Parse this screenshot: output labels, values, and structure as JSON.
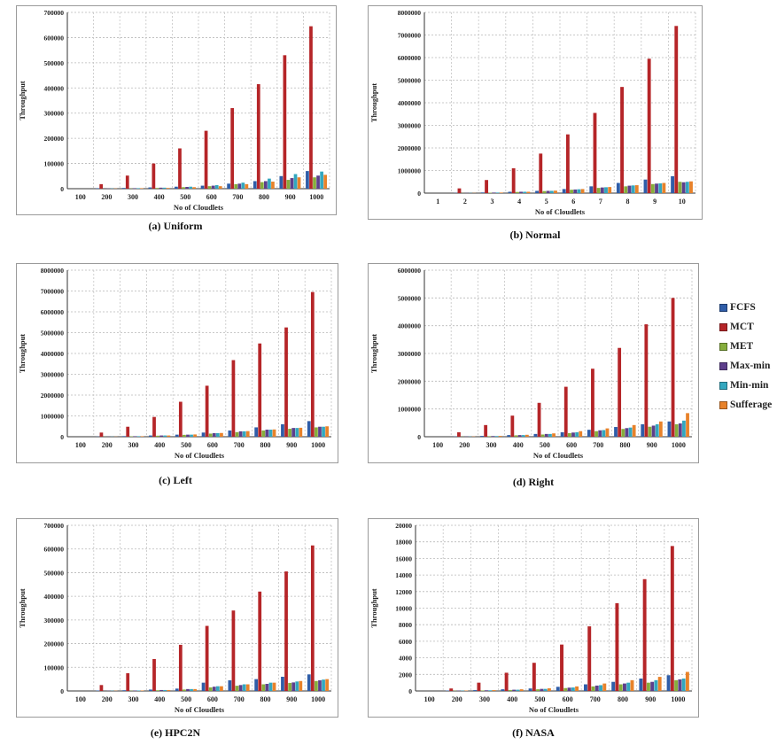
{
  "legend": {
    "items": [
      {
        "label": "FCFS",
        "color": "#2f5da8"
      },
      {
        "label": "MCT",
        "color": "#b52528"
      },
      {
        "label": "MET",
        "color": "#86ad3c"
      },
      {
        "label": "Max-min",
        "color": "#5d3f8c"
      },
      {
        "label": "Min-min",
        "color": "#33a7bf"
      },
      {
        "label": "Sufferage",
        "color": "#e8822a"
      }
    ]
  },
  "chart_data": [
    {
      "type": "bar",
      "caption": "(a) Uniform",
      "ylabel": "Throughput",
      "xlabel": "No of Cloudlets",
      "ylim": [
        0,
        700000
      ],
      "yticks": [
        0,
        100000,
        200000,
        300000,
        400000,
        500000,
        600000,
        700000
      ],
      "categories": [
        "100",
        "200",
        "300",
        "400",
        "500",
        "600",
        "700",
        "800",
        "900",
        "1000"
      ],
      "series": [
        {
          "name": "FCFS",
          "values": [
            0,
            2000,
            3000,
            5000,
            8000,
            12000,
            20000,
            30000,
            50000,
            70000
          ]
        },
        {
          "name": "MCT",
          "values": [
            0,
            18000,
            52000,
            100000,
            160000,
            230000,
            320000,
            415000,
            530000,
            645000
          ]
        },
        {
          "name": "MET",
          "values": [
            0,
            0,
            1000,
            3000,
            6000,
            10000,
            18000,
            26000,
            35000,
            45000
          ]
        },
        {
          "name": "Max-min",
          "values": [
            0,
            1000,
            2000,
            4000,
            7000,
            12000,
            20000,
            30000,
            42000,
            52000
          ]
        },
        {
          "name": "Min-min",
          "values": [
            0,
            1000,
            2000,
            4000,
            8000,
            14000,
            24000,
            40000,
            58000,
            68000
          ]
        },
        {
          "name": "Sufferage",
          "values": [
            0,
            1000,
            2000,
            3000,
            6000,
            10000,
            18000,
            28000,
            45000,
            55000
          ]
        }
      ]
    },
    {
      "type": "bar",
      "caption": "(b) Normal",
      "ylabel": "Throughput",
      "xlabel": "No of Cloudlets",
      "ylim": [
        0,
        8000000
      ],
      "yticks": [
        0,
        1000000,
        2000000,
        3000000,
        4000000,
        5000000,
        6000000,
        7000000,
        8000000
      ],
      "categories": [
        "1",
        "2",
        "3",
        "4",
        "5",
        "6",
        "7",
        "8",
        "9",
        "10"
      ],
      "series": [
        {
          "name": "FCFS",
          "values": [
            0,
            10000,
            30000,
            60000,
            100000,
            180000,
            300000,
            450000,
            600000,
            750000
          ]
        },
        {
          "name": "MCT",
          "values": [
            0,
            210000,
            580000,
            1100000,
            1750000,
            2600000,
            3550000,
            4700000,
            5950000,
            7400000
          ]
        },
        {
          "name": "MET",
          "values": [
            0,
            5000,
            20000,
            50000,
            90000,
            150000,
            230000,
            300000,
            400000,
            500000
          ]
        },
        {
          "name": "Max-min",
          "values": [
            0,
            8000,
            25000,
            60000,
            100000,
            160000,
            250000,
            330000,
            420000,
            480000
          ]
        },
        {
          "name": "Min-min",
          "values": [
            0,
            8000,
            25000,
            60000,
            100000,
            170000,
            260000,
            340000,
            430000,
            500000
          ]
        },
        {
          "name": "Sufferage",
          "values": [
            0,
            8000,
            25000,
            60000,
            110000,
            180000,
            270000,
            350000,
            450000,
            520000
          ]
        }
      ]
    },
    {
      "type": "bar",
      "caption": "(c) Left",
      "ylabel": "Throughput",
      "xlabel": "No of Cloudlets",
      "ylim": [
        0,
        8000000
      ],
      "yticks": [
        0,
        1000000,
        2000000,
        3000000,
        4000000,
        5000000,
        6000000,
        7000000,
        8000000
      ],
      "categories": [
        "100",
        "200",
        "300",
        "400",
        "500",
        "600",
        "700",
        "800",
        "900",
        "1000"
      ],
      "series": [
        {
          "name": "FCFS",
          "values": [
            0,
            10000,
            30000,
            60000,
            100000,
            200000,
            300000,
            450000,
            600000,
            750000
          ]
        },
        {
          "name": "MCT",
          "values": [
            0,
            200000,
            480000,
            950000,
            1680000,
            2450000,
            3680000,
            4480000,
            5250000,
            6950000
          ]
        },
        {
          "name": "MET",
          "values": [
            0,
            5000,
            20000,
            50000,
            90000,
            150000,
            220000,
            300000,
            380000,
            450000
          ]
        },
        {
          "name": "Max-min",
          "values": [
            0,
            8000,
            25000,
            60000,
            100000,
            170000,
            260000,
            340000,
            420000,
            480000
          ]
        },
        {
          "name": "Min-min",
          "values": [
            0,
            8000,
            25000,
            60000,
            100000,
            170000,
            260000,
            340000,
            420000,
            480000
          ]
        },
        {
          "name": "Sufferage",
          "values": [
            0,
            8000,
            25000,
            60000,
            110000,
            180000,
            270000,
            350000,
            430000,
            500000
          ]
        }
      ]
    },
    {
      "type": "bar",
      "caption": "(d) Right",
      "ylabel": "Throughput",
      "xlabel": "No of Cloudlets",
      "ylim": [
        0,
        6000000
      ],
      "yticks": [
        0,
        1000000,
        2000000,
        3000000,
        4000000,
        5000000,
        6000000
      ],
      "categories": [
        "100",
        "200",
        "300",
        "400",
        "500",
        "600",
        "700",
        "800",
        "900",
        "1000"
      ],
      "series": [
        {
          "name": "FCFS",
          "values": [
            0,
            10000,
            30000,
            60000,
            100000,
            160000,
            250000,
            350000,
            450000,
            550000
          ]
        },
        {
          "name": "MCT",
          "values": [
            0,
            160000,
            420000,
            760000,
            1220000,
            1800000,
            2450000,
            3200000,
            4050000,
            5000000
          ]
        },
        {
          "name": "MET",
          "values": [
            0,
            5000,
            20000,
            50000,
            80000,
            130000,
            200000,
            280000,
            360000,
            450000
          ]
        },
        {
          "name": "Max-min",
          "values": [
            0,
            8000,
            25000,
            60000,
            100000,
            150000,
            230000,
            310000,
            400000,
            480000
          ]
        },
        {
          "name": "Min-min",
          "values": [
            0,
            8000,
            25000,
            60000,
            100000,
            160000,
            240000,
            330000,
            450000,
            580000
          ]
        },
        {
          "name": "Sufferage",
          "values": [
            0,
            10000,
            30000,
            70000,
            120000,
            200000,
            300000,
            420000,
            550000,
            850000
          ]
        }
      ]
    },
    {
      "type": "bar",
      "caption": "(e) HPC2N",
      "ylabel": "Throughput",
      "xlabel": "No of Cloudlets",
      "ylim": [
        0,
        700000
      ],
      "yticks": [
        0,
        100000,
        200000,
        300000,
        400000,
        500000,
        600000,
        700000
      ],
      "categories": [
        "100",
        "200",
        "300",
        "400",
        "500",
        "600",
        "700",
        "800",
        "900",
        "1000"
      ],
      "series": [
        {
          "name": "FCFS",
          "values": [
            0,
            2000,
            3000,
            6000,
            10000,
            35000,
            45000,
            50000,
            60000,
            70000
          ]
        },
        {
          "name": "MCT",
          "values": [
            0,
            25000,
            75000,
            135000,
            195000,
            275000,
            340000,
            420000,
            505000,
            615000
          ]
        },
        {
          "name": "MET",
          "values": [
            0,
            0,
            1000,
            3000,
            6000,
            15000,
            22000,
            28000,
            34000,
            42000
          ]
        },
        {
          "name": "Max-min",
          "values": [
            0,
            1000,
            2000,
            4000,
            8000,
            18000,
            25000,
            30000,
            36000,
            45000
          ]
        },
        {
          "name": "Min-min",
          "values": [
            0,
            1000,
            2000,
            4000,
            8000,
            20000,
            28000,
            35000,
            40000,
            48000
          ]
        },
        {
          "name": "Sufferage",
          "values": [
            0,
            1000,
            2000,
            4000,
            8000,
            20000,
            28000,
            35000,
            42000,
            50000
          ]
        }
      ]
    },
    {
      "type": "bar",
      "caption": "(f) NASA",
      "ylabel": "Throughput",
      "xlabel": "No of Cloudlets",
      "ylim": [
        0,
        20000
      ],
      "yticks": [
        0,
        2000,
        4000,
        6000,
        8000,
        10000,
        12000,
        14000,
        16000,
        18000,
        20000
      ],
      "categories": [
        "100",
        "200",
        "300",
        "400",
        "500",
        "600",
        "700",
        "800",
        "900",
        "1000"
      ],
      "series": [
        {
          "name": "FCFS",
          "values": [
            0,
            50,
            100,
            200,
            300,
            500,
            800,
            1100,
            1500,
            1900
          ]
        },
        {
          "name": "MCT",
          "values": [
            0,
            300,
            1000,
            2200,
            3400,
            5600,
            7800,
            10600,
            13500,
            17500
          ]
        },
        {
          "name": "MET",
          "values": [
            0,
            30,
            60,
            120,
            200,
            350,
            550,
            800,
            1000,
            1300
          ]
        },
        {
          "name": "Max-min",
          "values": [
            0,
            40,
            80,
            150,
            250,
            400,
            650,
            900,
            1100,
            1400
          ]
        },
        {
          "name": "Min-min",
          "values": [
            0,
            40,
            80,
            150,
            250,
            420,
            700,
            1000,
            1300,
            1500
          ]
        },
        {
          "name": "Sufferage",
          "values": [
            0,
            50,
            100,
            200,
            320,
            550,
            900,
            1300,
            1700,
            2300
          ]
        }
      ]
    }
  ]
}
